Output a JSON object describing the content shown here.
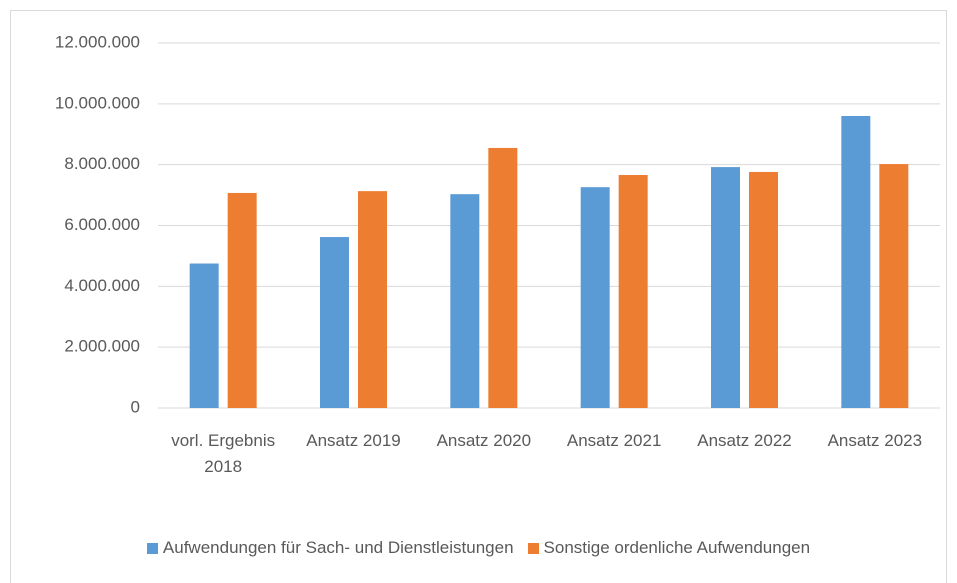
{
  "chart_data": {
    "type": "bar",
    "categories": [
      "vorl. Ergebnis 2018",
      "Ansatz 2019",
      "Ansatz 2020",
      "Ansatz 2021",
      "Ansatz 2022",
      "Ansatz 2023"
    ],
    "series": [
      {
        "name": "Aufwendungen für Sach- und Dienstleistungen",
        "color": "#5b9bd5",
        "values": [
          4750000,
          5620000,
          7030000,
          7260000,
          7920000,
          9600000
        ]
      },
      {
        "name": "Sonstige ordenliche Aufwendungen",
        "color": "#ed7d31",
        "values": [
          7070000,
          7130000,
          8550000,
          7660000,
          7760000,
          8020000
        ]
      }
    ],
    "ylim": [
      0,
      12000000
    ],
    "yticks": [
      0,
      {
        "value": 2000000,
        "label": "2.000.000"
      },
      {
        "value": 4000000,
        "label": "4.000.000"
      },
      {
        "value": 6000000,
        "label": "6.000.000"
      },
      {
        "value": 8000000,
        "label": "8.000.000"
      },
      {
        "value": 10000000,
        "label": "10.000.000"
      },
      {
        "value": 12000000,
        "label": "12.000.000"
      }
    ],
    "grid": true,
    "legend": "bottom"
  }
}
